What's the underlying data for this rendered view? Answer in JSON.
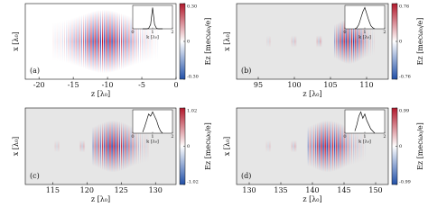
{
  "chart_data": [
    {
      "type": "heatmap",
      "panel_label": "(a)",
      "xlabel": "z [λ₀]",
      "ylabel": "x [λ₀]",
      "xlim": [
        -22,
        0
      ],
      "xticks": [
        -20,
        -15,
        -10,
        -5,
        0
      ],
      "colorbar": {
        "label": "Ez [mecω₀/e]",
        "clim": [
          -0.3,
          0.3
        ],
        "ticks": [
          {
            "value": 0.3,
            "label": "0.30"
          },
          0,
          {
            "value": -0.3,
            "label": "-0.30"
          }
        ]
      },
      "inset": {
        "type": "line",
        "xlabel": "k [λ₀]",
        "xlim": [
          0,
          2
        ],
        "xticks": [
          0,
          1,
          2
        ],
        "ylim": [
          0,
          1.1
        ],
        "x": [
          0.5,
          0.6,
          0.7,
          0.8,
          0.9,
          1.0,
          1.1,
          1.2,
          1.3,
          1.4,
          1.5
        ],
        "values": [
          0,
          0,
          0,
          0.02,
          0.2,
          1,
          0.2,
          0.02,
          0,
          0,
          0
        ]
      }
    },
    {
      "type": "heatmap",
      "panel_label": "(b)",
      "xlabel": "z [λ₀]",
      "ylabel": "x [λ₀]",
      "xlim": [
        92,
        113
      ],
      "xticks": [
        95,
        100,
        105,
        110
      ],
      "colorbar": {
        "label": "Ez [mecω₀/e]",
        "clim": [
          -0.76,
          0.76
        ],
        "ticks": [
          0.76,
          0,
          -0.76
        ]
      },
      "inset": {
        "type": "line",
        "xlabel": "k [λ₀]",
        "xlim": [
          0,
          2
        ],
        "xticks": [
          0,
          1,
          2
        ],
        "ylim": [
          0,
          1.1
        ],
        "x": [
          0.5,
          0.6,
          0.7,
          0.8,
          0.9,
          1.0,
          1.1,
          1.2,
          1.3,
          1.4,
          1.5
        ],
        "values": [
          0,
          0.05,
          0.2,
          0.5,
          0.8,
          1,
          0.7,
          0.4,
          0.15,
          0.05,
          0
        ]
      }
    },
    {
      "type": "heatmap",
      "panel_label": "(c)",
      "xlabel": "z [λ₀]",
      "ylabel": "x [λ₀]",
      "xlim": [
        111,
        133
      ],
      "xticks": [
        115,
        120,
        125,
        130
      ],
      "colorbar": {
        "label": "Ez [mecω₀/e]",
        "clim": [
          -1.02,
          1.02
        ],
        "ticks": [
          1.02,
          0,
          -1.02
        ]
      },
      "inset": {
        "type": "line",
        "xlabel": "k [λ₀]",
        "xlim": [
          0,
          2
        ],
        "xticks": [
          0,
          1,
          2
        ],
        "ylim": [
          0,
          1.1
        ],
        "x": [
          0.5,
          0.6,
          0.7,
          0.8,
          0.9,
          1.0,
          1.1,
          1.2,
          1.3,
          1.4,
          1.5
        ],
        "values": [
          0.05,
          0.3,
          0.6,
          0.9,
          0.8,
          1,
          0.8,
          0.6,
          0.3,
          0.1,
          0
        ]
      }
    },
    {
      "type": "heatmap",
      "panel_label": "(d)",
      "xlabel": "z [λ₀]",
      "ylabel": "x [λ₀]",
      "xlim": [
        128,
        152
      ],
      "xticks": [
        130,
        135,
        140,
        145,
        150
      ],
      "colorbar": {
        "label": "Ez [mecω₀/e]",
        "clim": [
          -0.99,
          0.99
        ],
        "ticks": [
          0.99,
          0,
          -0.99
        ]
      },
      "inset": {
        "type": "line",
        "xlabel": "k [λ₀]",
        "xlim": [
          0,
          2
        ],
        "xticks": [
          0,
          1,
          2
        ],
        "ylim": [
          0,
          1.1
        ],
        "x": [
          0.5,
          0.6,
          0.7,
          0.8,
          0.9,
          1.0,
          1.1,
          1.2,
          1.3,
          1.4,
          1.5
        ],
        "values": [
          0.1,
          0.4,
          0.8,
          1,
          0.7,
          0.9,
          0.6,
          0.4,
          0.2,
          0.1,
          0
        ]
      }
    }
  ]
}
